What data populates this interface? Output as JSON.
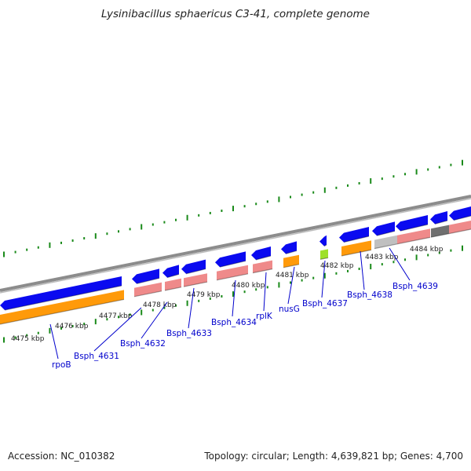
{
  "title": "Lysinibacillus sphaericus C3-41, complete genome",
  "accession": "Accession: NC_010382",
  "topology": "Topology: circular; Length: 4,639,821 bp; Genes: 4,700",
  "colors": {
    "backbone": "#8c8c8c",
    "forward_gene": "#0a0af0",
    "cds": "#ff9a0a",
    "rrna_pink": "#ef8a8a",
    "trna_green": "#9ee02a",
    "grey_gene": "#c0c0c0",
    "dark_gene": "#707070",
    "tick": "#1a8a1a",
    "label": "#0000cc"
  },
  "kbp_labels": [
    "4475 kbp",
    "4476 kbp",
    "4477 kbp",
    "4478 kbp",
    "4479 kbp",
    "4480 kbp",
    "4481 kbp",
    "4482 kbp",
    "4483 kbp",
    "4484 kbp"
  ],
  "gene_labels": [
    "rpoB",
    "Bsph_4631",
    "Bsph_4632",
    "Bsph_4633",
    "Bsph_4634",
    "rplK",
    "nusG",
    "Bsph_4637",
    "Bsph_4638",
    "Bsph_4639"
  ]
}
